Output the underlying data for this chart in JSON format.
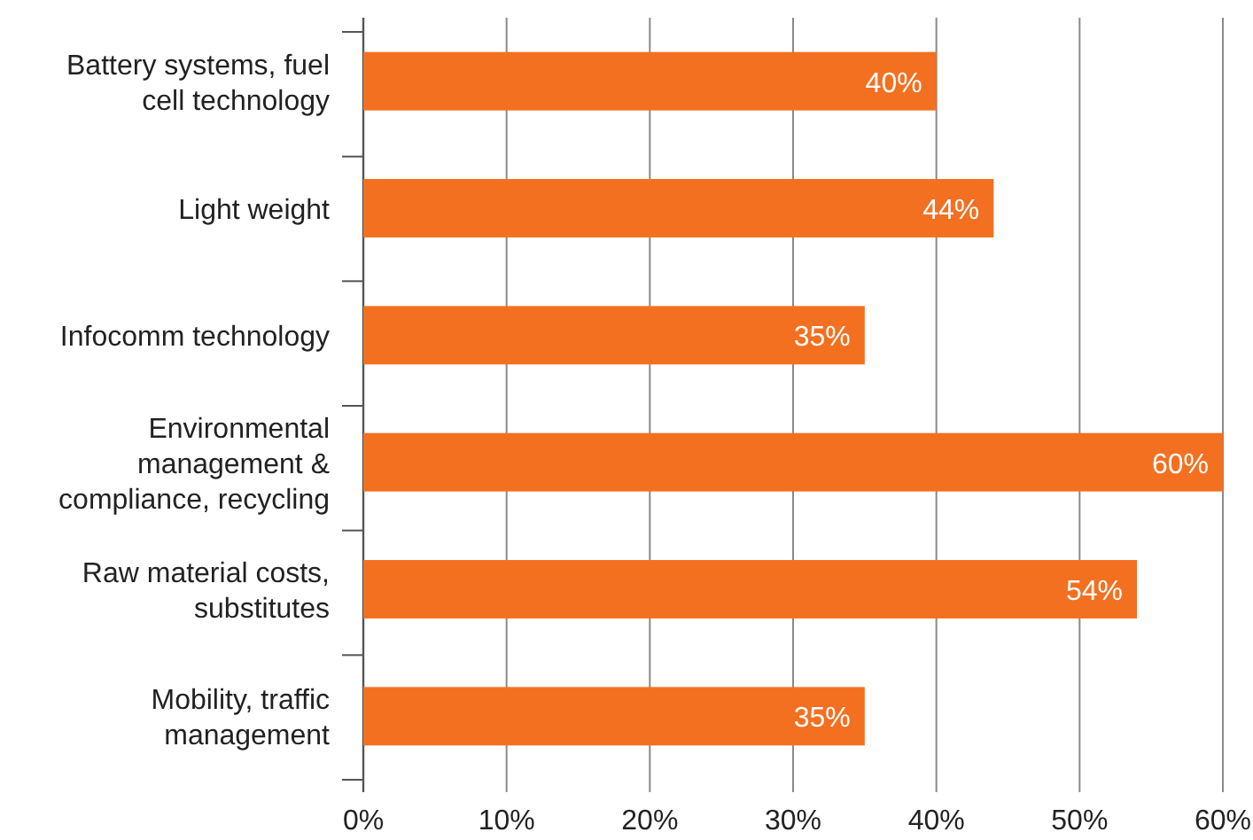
{
  "chart_data": {
    "type": "bar",
    "orientation": "horizontal",
    "categories": [
      "Battery systems, fuel cell technology",
      "Light weight",
      "Infocomm technology",
      "Environmental management & compliance, recycling",
      "Raw material costs, substitutes",
      "Mobility, traffic management"
    ],
    "values": [
      40,
      44,
      35,
      60,
      54,
      35
    ],
    "value_labels": [
      "40%",
      "44%",
      "35%",
      "60%",
      "54%",
      "35%"
    ],
    "color": "#f37021",
    "xlim": [
      0,
      60
    ],
    "xticks": [
      {
        "value": 0,
        "label": "0%"
      },
      {
        "value": 10,
        "label": "10%"
      },
      {
        "value": 20,
        "label": "20%"
      },
      {
        "value": 30,
        "label": "30%"
      },
      {
        "value": 40,
        "label": "40%"
      },
      {
        "value": 50,
        "label": "50%"
      },
      {
        "value": 60,
        "label": "60%"
      }
    ],
    "grid": "x"
  }
}
